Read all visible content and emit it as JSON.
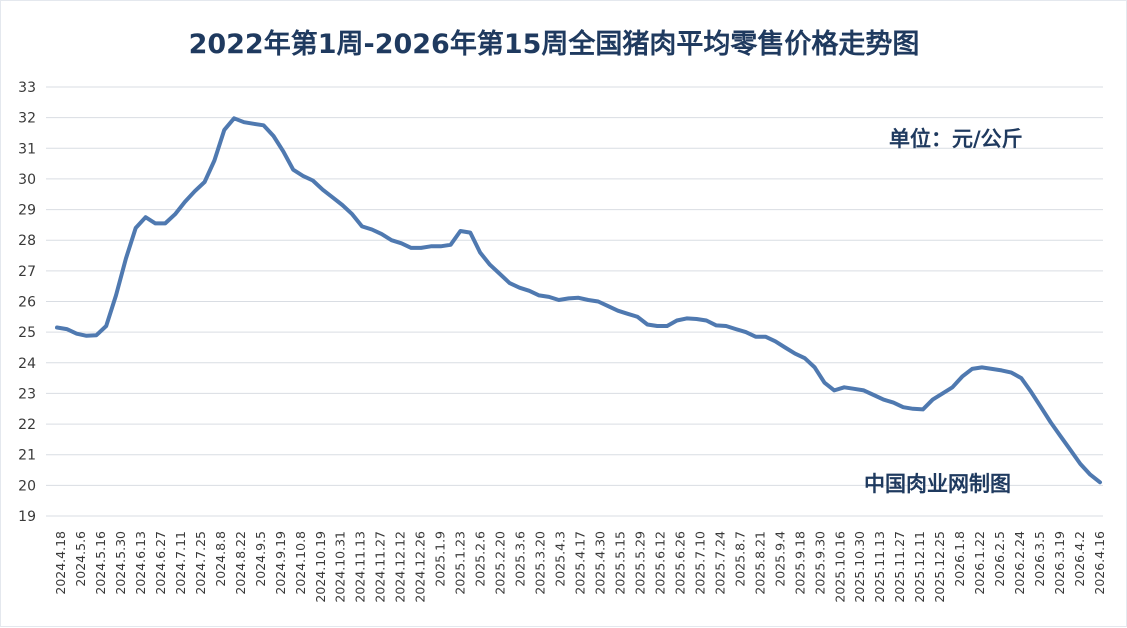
{
  "chart_data": {
    "type": "line",
    "title": "2022年第1周-2026年第15周全国猪肉平均零售价格走势图",
    "unit_label": "单位：元/公斤",
    "source_label": "中国肉业网制图",
    "ylim": [
      19,
      33
    ],
    "y_ticks": [
      19,
      20,
      21,
      22,
      23,
      24,
      25,
      26,
      27,
      28,
      29,
      30,
      31,
      32,
      33
    ],
    "grid": true,
    "legend": "none",
    "line_color": "#4f79b0",
    "x_tick_labels": [
      "2024.4.18",
      "2024.5.6",
      "2024.5.16",
      "2024.5.30",
      "2024.6.13",
      "2024.6.27",
      "2024.7.11",
      "2024.7.25",
      "2024.8.8",
      "2024.8.22",
      "2024.9.5",
      "2024.9.19",
      "2024.10.8",
      "2024.10.19",
      "2024.10.31",
      "2024.11.13",
      "2024.11.27",
      "2024.12.12",
      "2024.12.26",
      "2025.1.9",
      "2025.1.23",
      "2025.2.6",
      "2025.2.20",
      "2025.3.6",
      "2025.3.20",
      "2025.4.3",
      "2025.4.17",
      "2025.4.30",
      "2025.5.15",
      "2025.5.29",
      "2025.6.12",
      "2025.6.26",
      "2025.7.10",
      "2025.7.24",
      "2025.8.7",
      "2025.8.21",
      "2025.9.4",
      "2025.9.18",
      "2025.9.30",
      "2025.10.16",
      "2025.10.30",
      "2025.11.13",
      "2025.11.27",
      "2025.12.11",
      "2025.12.25",
      "2026.1.8",
      "2026.1.22",
      "2026.2.5",
      "2026.2.24",
      "2026.3.5",
      "2026.3.19",
      "2026.4.2",
      "2026.4.16"
    ],
    "values": [
      25.15,
      25.1,
      24.95,
      24.88,
      24.9,
      25.2,
      26.2,
      27.4,
      28.4,
      28.75,
      28.55,
      28.55,
      28.85,
      29.25,
      29.6,
      29.9,
      30.6,
      31.6,
      31.98,
      31.85,
      31.8,
      31.75,
      31.4,
      30.9,
      30.3,
      30.1,
      29.95,
      29.65,
      29.4,
      29.15,
      28.85,
      28.45,
      28.35,
      28.2,
      28.0,
      27.9,
      27.75,
      27.75,
      27.8,
      27.8,
      27.85,
      28.3,
      28.25,
      27.6,
      27.2,
      26.9,
      26.6,
      26.45,
      26.35,
      26.2,
      26.15,
      26.05,
      26.1,
      26.12,
      26.05,
      26.0,
      25.85,
      25.7,
      25.6,
      25.5,
      25.25,
      25.2,
      25.2,
      25.38,
      25.45,
      25.43,
      25.38,
      25.22,
      25.2,
      25.1,
      25.0,
      24.85,
      24.85,
      24.7,
      24.5,
      24.3,
      24.15,
      23.85,
      23.35,
      23.1,
      23.2,
      23.15,
      23.1,
      22.95,
      22.8,
      22.7,
      22.55,
      22.5,
      22.48,
      22.8,
      23.0,
      23.2,
      23.55,
      23.8,
      23.85,
      23.8,
      23.75,
      23.68,
      23.5,
      23.05,
      22.55,
      22.05,
      21.6,
      21.15,
      20.7,
      20.35,
      20.1
    ]
  }
}
